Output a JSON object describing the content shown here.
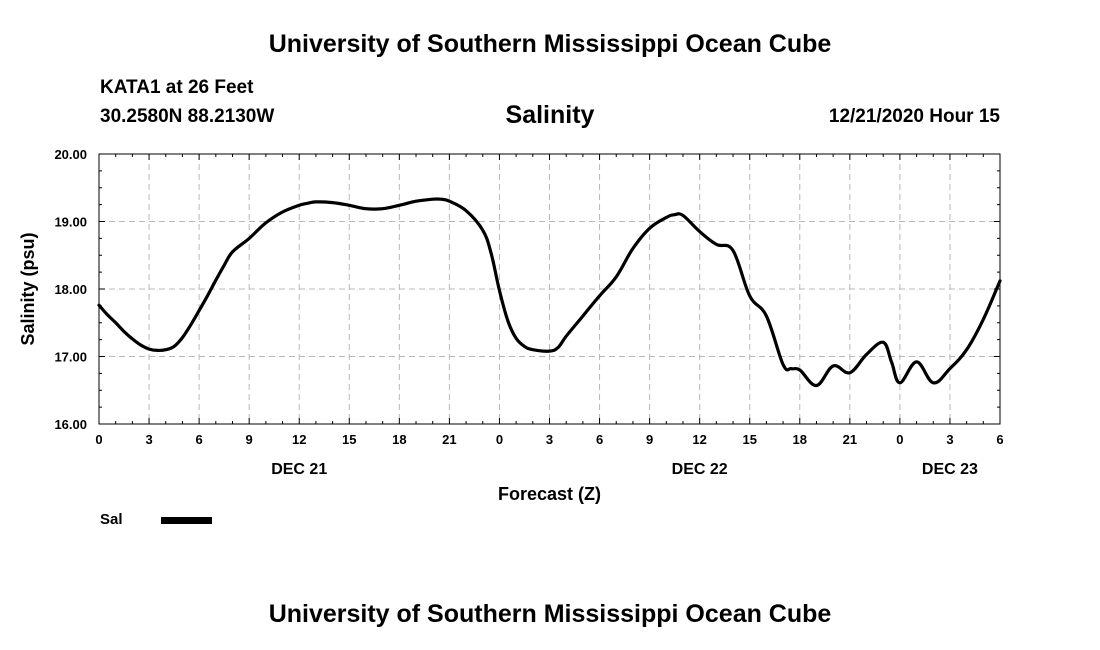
{
  "header": {
    "title": "University of Southern Mississippi Ocean Cube",
    "station": "KATA1 at 26 Feet",
    "coords": "30.2580N 88.2130W",
    "timestamp": "12/21/2020 Hour 15"
  },
  "footer": {
    "title": "University of Southern Mississippi Ocean Cube"
  },
  "chart_data": {
    "type": "line",
    "title": "Salinity",
    "xlabel": "Forecast (Z)",
    "ylabel": "Salinity (psu)",
    "xlim": [
      0,
      54
    ],
    "ylim": [
      16,
      20
    ],
    "grid": true,
    "legend_position": "bottom-left",
    "x_tick_values": [
      0,
      3,
      6,
      9,
      12,
      15,
      18,
      21,
      24,
      27,
      30,
      33,
      36,
      39,
      42,
      45,
      48,
      51,
      54
    ],
    "x_tick_labels": [
      "0",
      "3",
      "6",
      "9",
      "12",
      "15",
      "18",
      "21",
      "0",
      "3",
      "6",
      "9",
      "12",
      "15",
      "18",
      "21",
      "0",
      "3",
      "6"
    ],
    "y_tick_values": [
      16,
      17,
      18,
      19,
      20
    ],
    "y_tick_labels": [
      "16.00",
      "17.00",
      "18.00",
      "19.00",
      "20.00"
    ],
    "day_labels": [
      {
        "x": 12,
        "label": "DEC 21"
      },
      {
        "x": 36,
        "label": "DEC 22"
      },
      {
        "x": 51,
        "label": "DEC 23"
      }
    ],
    "color": "#000000",
    "series": [
      {
        "name": "Sal",
        "x": [
          0,
          0.5,
          1,
          1.5,
          2,
          2.5,
          3,
          3.5,
          4,
          4.5,
          5,
          5.5,
          6,
          6.5,
          7,
          7.5,
          8,
          9,
          10,
          11,
          12,
          12.5,
          13,
          14,
          15,
          16,
          17,
          18,
          19,
          20,
          20.5,
          21,
          22,
          23,
          23.5,
          24,
          24.5,
          25,
          25.5,
          26,
          27,
          27.5,
          28,
          29,
          30,
          31,
          32,
          33,
          34,
          34.5,
          35,
          36,
          37,
          38,
          39,
          40,
          41,
          41.5,
          42,
          43,
          44,
          45,
          46,
          47,
          47.5,
          48,
          49,
          50,
          51,
          52,
          53,
          54
        ],
        "values": [
          17.76,
          17.62,
          17.5,
          17.37,
          17.26,
          17.17,
          17.11,
          17.09,
          17.1,
          17.15,
          17.28,
          17.47,
          17.68,
          17.9,
          18.13,
          18.35,
          18.55,
          18.75,
          18.98,
          19.14,
          19.24,
          19.27,
          19.29,
          19.28,
          19.24,
          19.19,
          19.19,
          19.24,
          19.3,
          19.33,
          19.33,
          19.3,
          19.16,
          18.87,
          18.53,
          17.98,
          17.53,
          17.27,
          17.15,
          17.1,
          17.08,
          17.13,
          17.3,
          17.6,
          17.9,
          18.18,
          18.6,
          18.9,
          19.06,
          19.1,
          19.09,
          18.85,
          18.66,
          18.57,
          17.9,
          17.6,
          16.88,
          16.82,
          16.8,
          16.57,
          16.86,
          16.76,
          17.03,
          17.21,
          16.92,
          16.61,
          16.92,
          16.61,
          16.82,
          17.1,
          17.55,
          18.12
        ]
      }
    ]
  }
}
